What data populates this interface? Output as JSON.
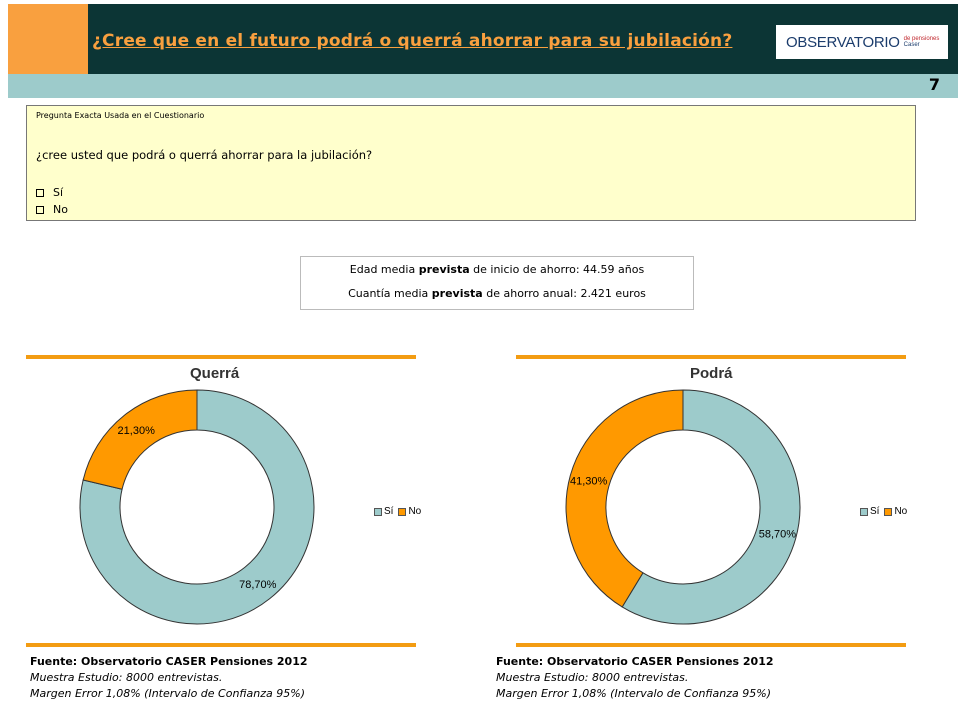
{
  "header": {
    "title": "¿Cree que en el futuro podrá o querrá ahorrar para su jubilación?",
    "logo_main": "OBSERVATORIO",
    "logo_sub_1": "de pensiones",
    "logo_sub_2": "Caser",
    "page_number": "7"
  },
  "question": {
    "header": "Pregunta Exacta Usada en el Cuestionario",
    "text": "¿cree usted que podrá o querrá ahorrar para la jubilación?",
    "options": [
      "Sí",
      "No"
    ]
  },
  "stats": {
    "line1_pre": "Edad media ",
    "line1_bold": "prevista",
    "line1_post": " de inicio de ahorro: 44.59 años",
    "line2_pre": "Cuantía media ",
    "line2_bold": "prevista",
    "line2_post": " de ahorro anual: 2.421 euros"
  },
  "colors": {
    "si": "#9DCBCB",
    "no": "#FF9900",
    "rule": "#F39C12"
  },
  "chart_data": [
    {
      "type": "pie",
      "title": "Querrá",
      "categories": [
        "Sí",
        "No"
      ],
      "values": [
        78.7,
        21.3
      ],
      "labels": [
        "78,70%",
        "21,30%"
      ],
      "legend": "right"
    },
    {
      "type": "pie",
      "title": "Podrá",
      "categories": [
        "Sí",
        "No"
      ],
      "values": [
        58.7,
        41.3
      ],
      "labels": [
        "58,70%",
        "41,30%"
      ],
      "legend": "right"
    }
  ],
  "sources": [
    {
      "line1": "Fuente: Observatorio CASER Pensiones 2012",
      "line2": "Muestra Estudio: 8000 entrevistas.",
      "line3": "Margen Error 1,08% (Intervalo de Confianza 95%)"
    },
    {
      "line1": "Fuente: Observatorio CASER Pensiones 2012",
      "line2": "Muestra Estudio: 8000 entrevistas.",
      "line3": "Margen Error 1,08% (Intervalo de Confianza 95%)"
    }
  ]
}
